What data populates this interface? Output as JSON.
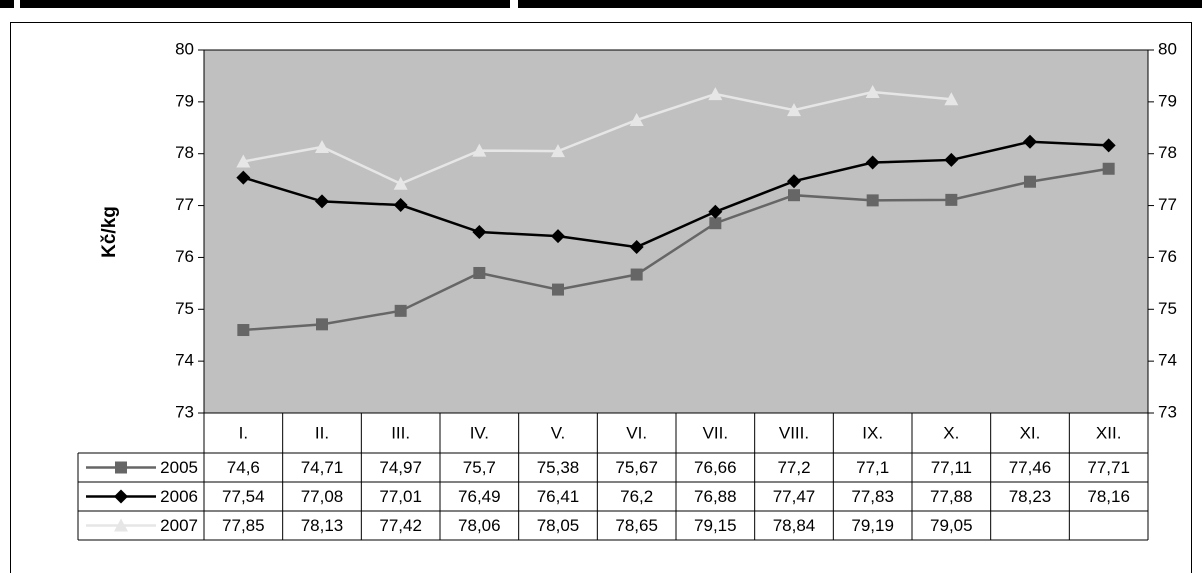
{
  "chart_data": {
    "type": "line",
    "y_label": "Kč/kg",
    "categories": [
      "I.",
      "II.",
      "III.",
      "IV.",
      "V.",
      "VI.",
      "VII.",
      "VIII.",
      "IX.",
      "X.",
      "XI.",
      "XII."
    ],
    "series": [
      {
        "name": "2005",
        "color": "#666666",
        "marker": "square",
        "values": [
          74.6,
          74.71,
          74.97,
          75.7,
          75.38,
          75.67,
          76.66,
          77.2,
          77.1,
          77.11,
          77.46,
          77.71
        ],
        "value_labels": [
          "74,6",
          "74,71",
          "74,97",
          "75,7",
          "75,38",
          "75,67",
          "76,66",
          "77,2",
          "77,1",
          "77,11",
          "77,46",
          "77,71"
        ]
      },
      {
        "name": "2006",
        "color": "#000000",
        "marker": "diamond",
        "values": [
          77.54,
          77.08,
          77.01,
          76.49,
          76.41,
          76.2,
          76.88,
          77.47,
          77.83,
          77.88,
          78.23,
          78.16
        ],
        "value_labels": [
          "77,54",
          "77,08",
          "77,01",
          "76,49",
          "76,41",
          "76,2",
          "76,88",
          "77,47",
          "77,83",
          "77,88",
          "78,23",
          "78,16"
        ]
      },
      {
        "name": "2007",
        "color": "#e6e6e6",
        "marker": "triangle",
        "values": [
          77.85,
          78.13,
          77.42,
          78.06,
          78.05,
          78.65,
          79.15,
          78.84,
          79.19,
          79.05,
          null,
          null
        ],
        "value_labels": [
          "77,85",
          "78,13",
          "77,42",
          "78,06",
          "78,05",
          "78,65",
          "79,15",
          "78,84",
          "79,19",
          "79,05",
          null,
          null
        ]
      }
    ],
    "ylim": [
      73,
      80
    ],
    "yticks": [
      73,
      74,
      75,
      76,
      77,
      78,
      79,
      80
    ],
    "plot_background": "#c0c0c0"
  }
}
